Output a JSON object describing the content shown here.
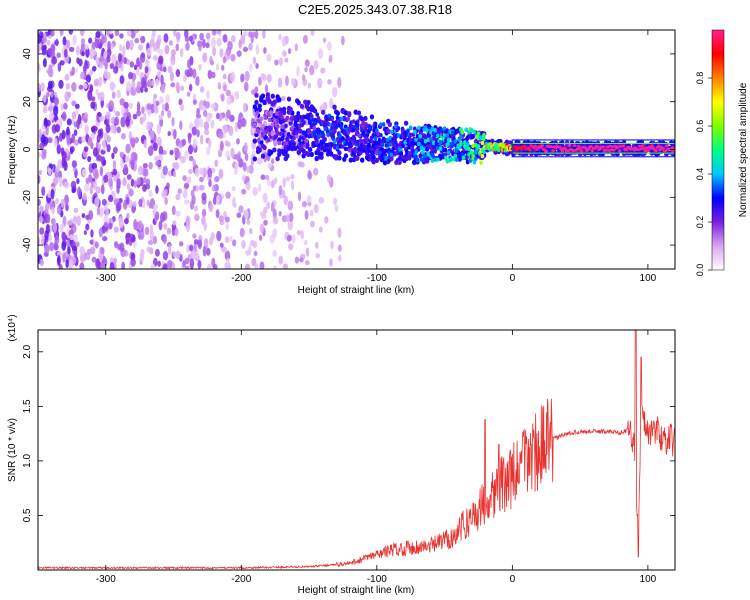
{
  "title": "C2E5.2025.343.07.38.R18",
  "chart_data": [
    {
      "type": "heatmap",
      "xlabel": "Height of straight line (km)",
      "ylabel": "Frequency (Hz)",
      "xlim": [
        -350,
        120
      ],
      "ylim": [
        -50,
        50
      ],
      "xticks": [
        -300,
        -200,
        -100,
        0,
        100
      ],
      "yticks": [
        -40,
        -20,
        0,
        20,
        40
      ],
      "colorbar": {
        "label": "Normalized spectral amplitude",
        "range": [
          0,
          1
        ],
        "ticks": [
          "0.0",
          "0.2",
          "0.4",
          "0.6",
          "0.8"
        ],
        "colormap": [
          "#ffffff",
          "#d9a6f2",
          "#7a1fe0",
          "#0000ff",
          "#00c8ff",
          "#00ff80",
          "#7fff00",
          "#ffff00",
          "#ff8000",
          "#ff0000",
          "#ff1f8f"
        ]
      },
      "ridge": {
        "x": [
          -190,
          -170,
          -150,
          -130,
          -110,
          -90,
          -70,
          -50,
          -30,
          -10,
          0,
          20,
          60,
          100,
          120
        ],
        "y": [
          10,
          9,
          8,
          7,
          5,
          3,
          2.5,
          2,
          1.5,
          1,
          0.5,
          0.5,
          0.5,
          0.5,
          0.5
        ],
        "peak_amplitude": [
          0.15,
          0.25,
          0.3,
          0.35,
          0.3,
          0.35,
          0.4,
          0.45,
          0.55,
          0.85,
          0.9,
          1.0,
          1.0,
          1.0,
          1.0
        ]
      },
      "noise_field_x": [
        -350,
        -140
      ]
    },
    {
      "type": "line",
      "xlabel": "Height of straight line (km)",
      "ylabel": "SNR (10 * v/v)",
      "y_multiplier": "(x10⁴)",
      "xlim": [
        -350,
        120
      ],
      "ylim": [
        0,
        2.2
      ],
      "xticks": [
        -300,
        -200,
        -100,
        0,
        100
      ],
      "yticks": [
        "0.5",
        "1.0",
        "1.5",
        "2.0"
      ],
      "color": "#e8322e",
      "x": [
        -350,
        -300,
        -200,
        -150,
        -120,
        -100,
        -90,
        -80,
        -60,
        -45,
        -35,
        -25,
        -15,
        -8,
        0,
        10,
        20,
        30,
        40,
        50,
        60,
        70,
        80,
        85,
        90,
        93,
        95,
        100,
        105,
        110,
        120
      ],
      "y": [
        0.02,
        0.02,
        0.02,
        0.03,
        0.06,
        0.14,
        0.18,
        0.2,
        0.22,
        0.3,
        0.42,
        0.55,
        0.7,
        0.78,
        0.85,
        1.02,
        1.12,
        1.2,
        1.25,
        1.27,
        1.27,
        1.27,
        1.26,
        1.28,
        1.2,
        0.2,
        1.5,
        1.25,
        1.3,
        1.22,
        1.18
      ],
      "spikes": [
        {
          "x": -20,
          "y": 1.38
        },
        {
          "x": -10,
          "y": 1.15
        },
        {
          "x": 91,
          "y": 2.2
        },
        {
          "x": 93,
          "y": 0.12
        },
        {
          "x": 95,
          "y": 1.95
        }
      ]
    }
  ]
}
